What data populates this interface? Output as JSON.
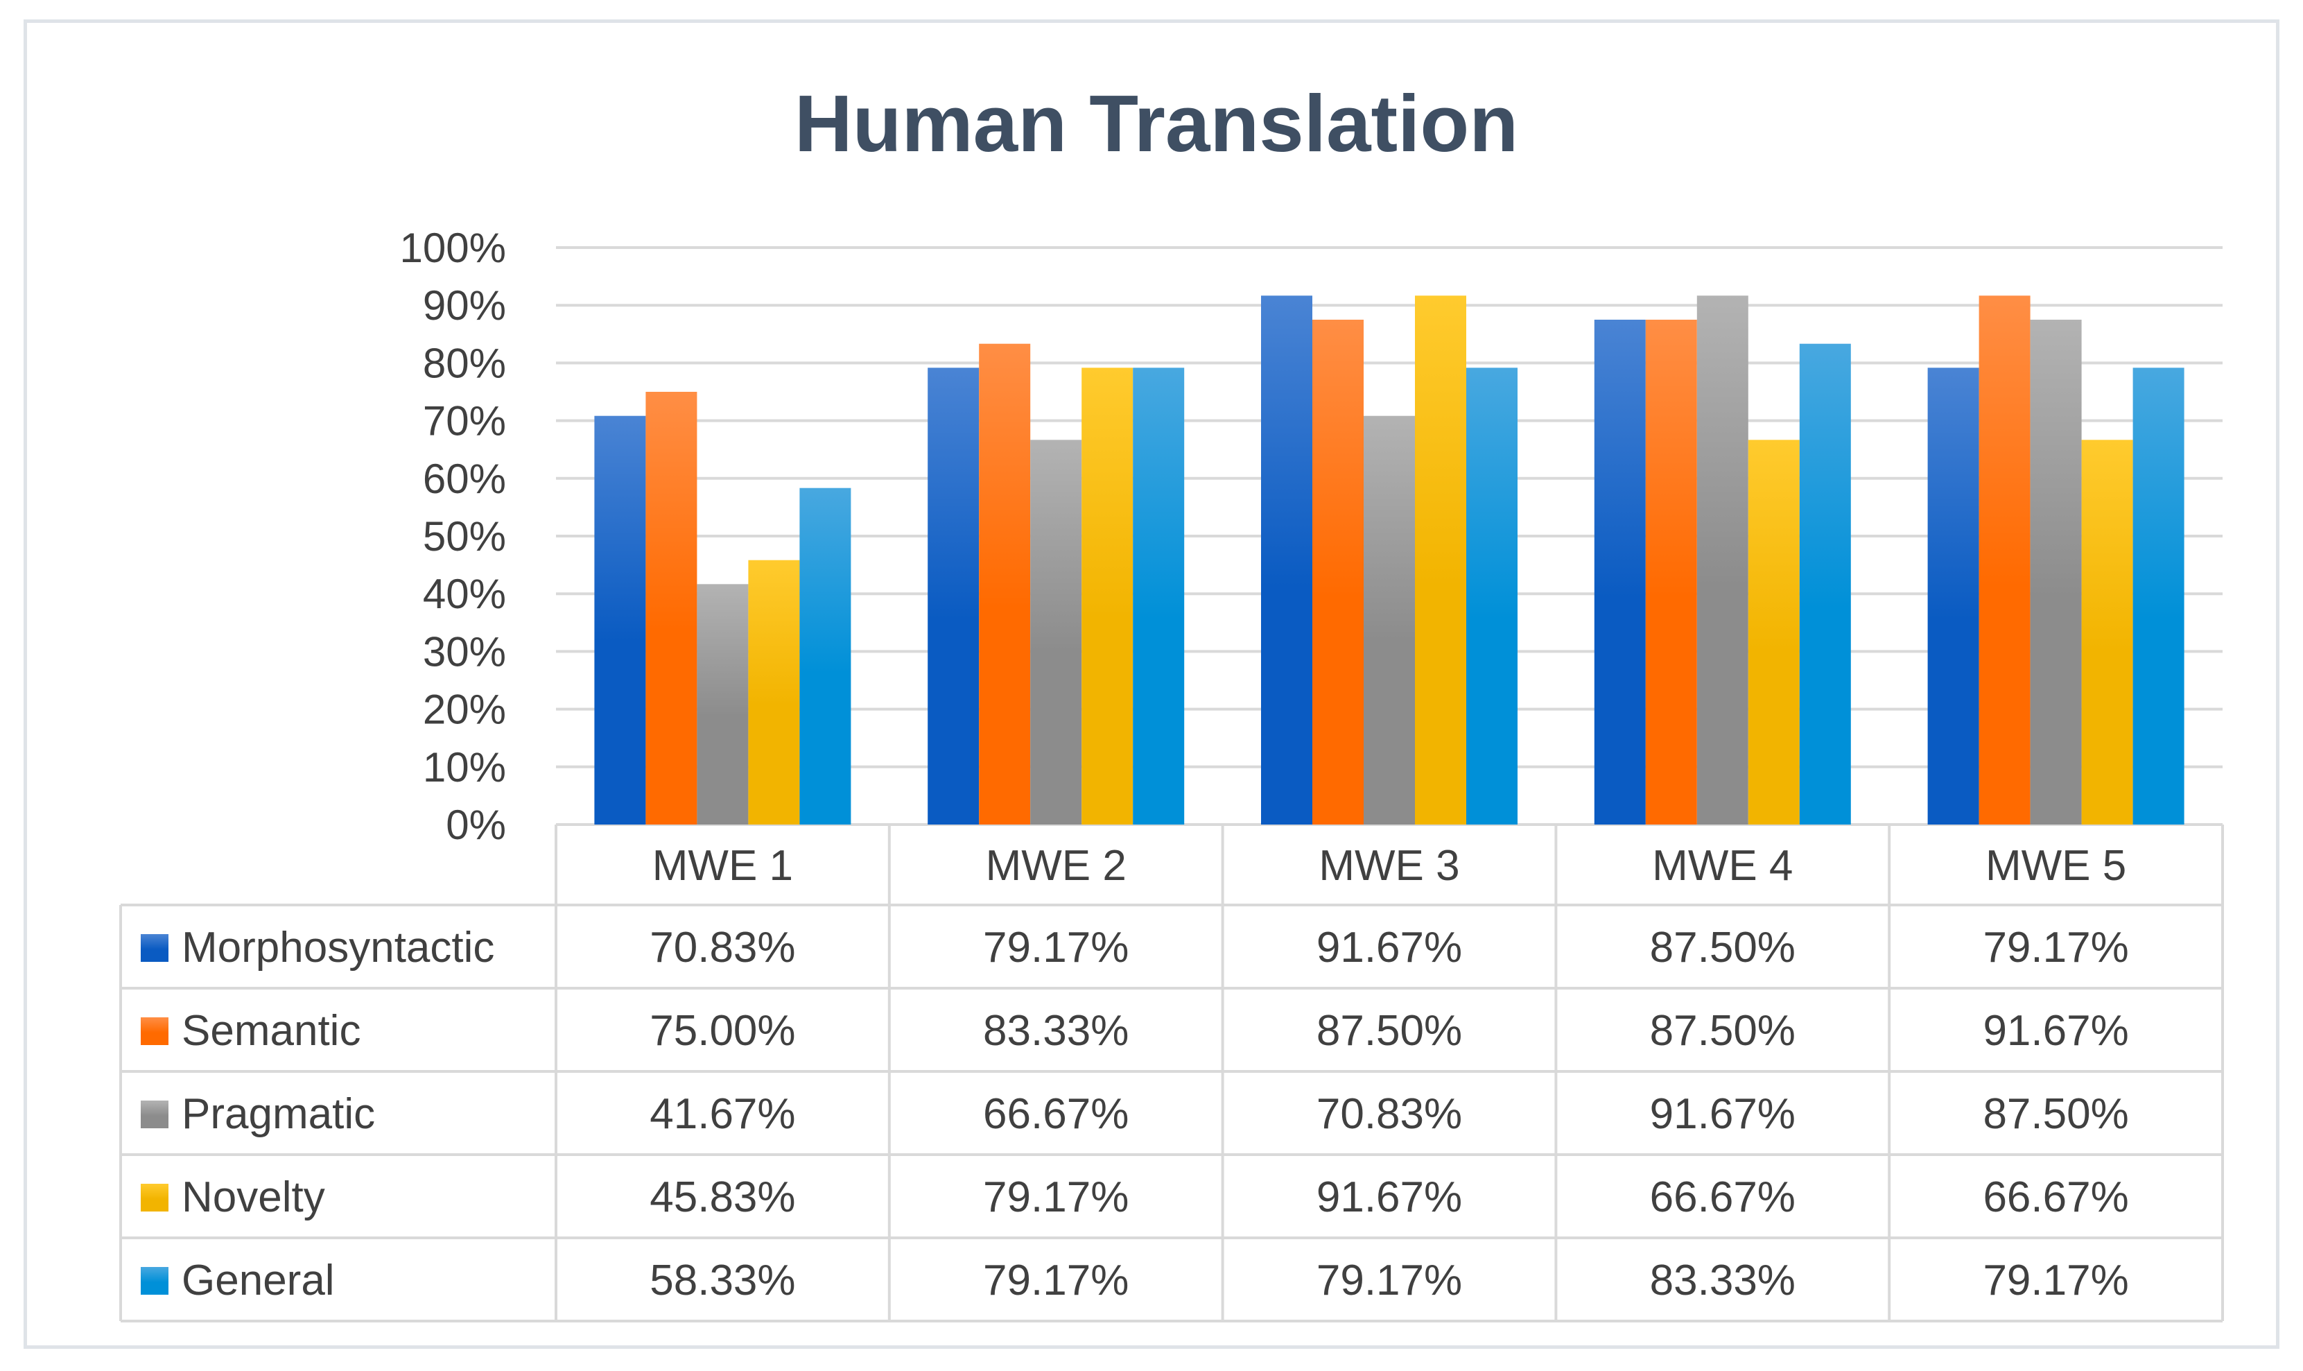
{
  "chart_data": {
    "type": "bar",
    "title": "Human Translation",
    "categories": [
      "MWE 1",
      "MWE 2",
      "MWE 3",
      "MWE 4",
      "MWE 5"
    ],
    "yticks": [
      "0%",
      "10%",
      "20%",
      "30%",
      "40%",
      "50%",
      "60%",
      "70%",
      "80%",
      "90%",
      "100%"
    ],
    "ylim": [
      0,
      100
    ],
    "grid": true,
    "legend": "data-table",
    "series": [
      {
        "name": "Morphosyntactic",
        "color": "#1a6fd0",
        "light": "#4a84d4",
        "dark": "#0a5bc2",
        "values": [
          70.83,
          79.17,
          91.67,
          87.5,
          79.17
        ],
        "labels": [
          "70.83%",
          "79.17%",
          "91.67%",
          "87.50%",
          "79.17%"
        ]
      },
      {
        "name": "Semantic",
        "color": "#ff7a1e",
        "light": "#ff8e45",
        "dark": "#ff6a00",
        "values": [
          75.0,
          83.33,
          87.5,
          87.5,
          91.67
        ],
        "labels": [
          "75.00%",
          "83.33%",
          "87.50%",
          "87.50%",
          "91.67%"
        ]
      },
      {
        "name": "Pragmatic",
        "color": "#a5a5a5",
        "light": "#b3b3b3",
        "dark": "#8c8c8c",
        "values": [
          41.67,
          66.67,
          70.83,
          91.67,
          87.5
        ],
        "labels": [
          "41.67%",
          "66.67%",
          "70.83%",
          "91.67%",
          "87.50%"
        ]
      },
      {
        "name": "Novelty",
        "color": "#ffc000",
        "light": "#ffcb2e",
        "dark": "#f2b400",
        "values": [
          45.83,
          79.17,
          91.67,
          66.67,
          66.67
        ],
        "labels": [
          "45.83%",
          "79.17%",
          "91.67%",
          "66.67%",
          "66.67%"
        ]
      },
      {
        "name": "General",
        "color": "#27a0dd",
        "light": "#48a8e0",
        "dark": "#0090d8",
        "values": [
          58.33,
          79.17,
          79.17,
          83.33,
          79.17
        ],
        "labels": [
          "58.33%",
          "79.17%",
          "79.17%",
          "83.33%",
          "79.17%"
        ]
      }
    ]
  }
}
